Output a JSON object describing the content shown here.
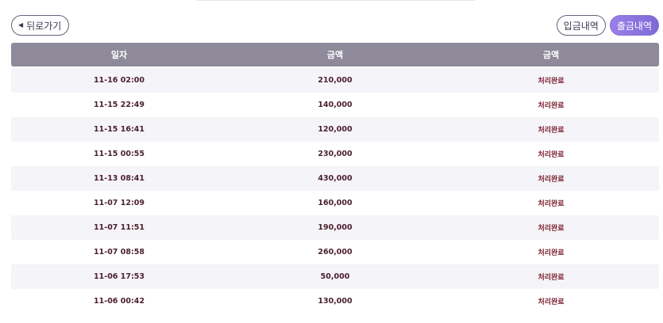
{
  "nav": {
    "back_label": "뒤로가기",
    "back_icon": "triangle-left-icon"
  },
  "tabs": [
    {
      "label": "입금내역",
      "active": false
    },
    {
      "label": "출금내역",
      "active": true
    }
  ],
  "table": {
    "headers": [
      "일자",
      "금액",
      "금액"
    ],
    "rows": [
      {
        "date": "11-16 02:00",
        "amount": "210,000",
        "status": "처리완료"
      },
      {
        "date": "11-15 22:49",
        "amount": "140,000",
        "status": "처리완료"
      },
      {
        "date": "11-15 16:41",
        "amount": "120,000",
        "status": "처리완료"
      },
      {
        "date": "11-15 00:55",
        "amount": "230,000",
        "status": "처리완료"
      },
      {
        "date": "11-13 08:41",
        "amount": "430,000",
        "status": "처리완료"
      },
      {
        "date": "11-07 12:09",
        "amount": "160,000",
        "status": "처리완료"
      },
      {
        "date": "11-07 11:51",
        "amount": "190,000",
        "status": "처리완료"
      },
      {
        "date": "11-07 08:58",
        "amount": "260,000",
        "status": "처리완료"
      },
      {
        "date": "11-06 17:53",
        "amount": "50,000",
        "status": "처리완료"
      },
      {
        "date": "11-06 00:42",
        "amount": "130,000",
        "status": "처리완료"
      }
    ]
  },
  "colors": {
    "header_bg": "#8e8a9a",
    "active_tab": "#8a72d8",
    "status_text": "#7a1e2e"
  }
}
